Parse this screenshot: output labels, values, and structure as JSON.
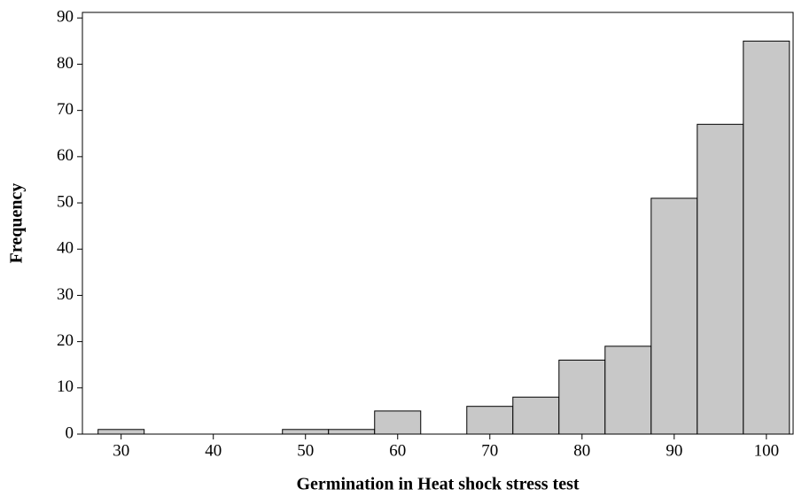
{
  "chart_data": {
    "type": "histogram",
    "x_label": "Germination in Heat shock stress test",
    "y_label": "Frequency",
    "bins": [
      27.5,
      32.5,
      37.5,
      42.5,
      47.5,
      52.5,
      57.5,
      62.5,
      67.5,
      72.5,
      77.5,
      82.5,
      87.5,
      92.5,
      97.5,
      102.5
    ],
    "values": [
      1,
      0,
      0,
      0,
      1,
      1,
      5,
      0,
      6,
      8,
      16,
      19,
      51,
      67,
      85
    ],
    "color": "#c8c8c8",
    "xlim": [
      25.8,
      102.9
    ],
    "xticks": [
      30,
      40,
      50,
      60,
      70,
      80,
      90,
      100
    ],
    "ylim": [
      0,
      91.2
    ],
    "yticks": [
      0,
      10,
      20,
      30,
      40,
      50,
      60,
      70,
      80,
      90
    ]
  }
}
